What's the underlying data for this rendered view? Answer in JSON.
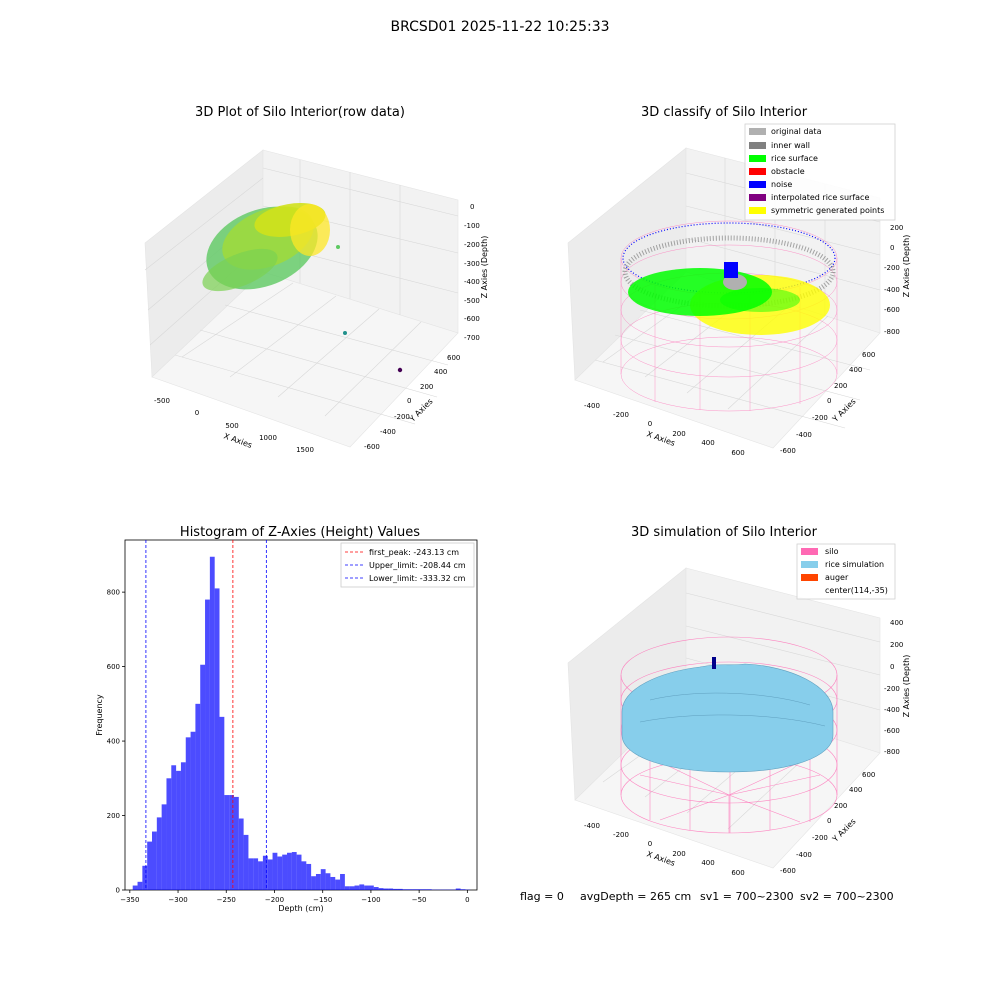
{
  "suptitle": "BRCSD01 2025-11-22 10:25:33",
  "footer": {
    "flag": "flag = 0",
    "avgDepth": "avgDepth = 265 cm",
    "sv1": "sv1 = 700~2300",
    "sv2": "sv2 = 700~2300"
  },
  "raw3d": {
    "title": "3D Plot of Silo Interior(row data)",
    "xlabel": "X Axies",
    "ylabel": "Y Axies",
    "zlabel": "Z Axies (Depth)",
    "xticks": [
      "-500",
      "0",
      "500",
      "1000",
      "1500"
    ],
    "yticks": [
      "-600",
      "-400",
      "-200",
      "0",
      "200",
      "400",
      "600"
    ],
    "zticks": [
      "0",
      "-100",
      "-200",
      "-300",
      "-400",
      "-500",
      "-600",
      "-700"
    ],
    "colors": {
      "low": "#5ec962",
      "high": "#fde725",
      "outlier1": "#21918c",
      "outlier2": "#440154"
    }
  },
  "classify3d": {
    "title": "3D classify of Silo Interior",
    "xlabel": "X Axies",
    "ylabel": "Y Axies",
    "zlabel": "Z Axies (Depth)",
    "xticks": [
      "-400",
      "-200",
      "0",
      "200",
      "400",
      "600"
    ],
    "yticks": [
      "-600",
      "-400",
      "-200",
      "0",
      "200",
      "400",
      "600"
    ],
    "zticks": [
      "200",
      "0",
      "-200",
      "-400",
      "-600",
      "-800"
    ],
    "legend": [
      {
        "label": "original data",
        "color": "#b0b0b0"
      },
      {
        "label": "inner wall",
        "color": "#808080"
      },
      {
        "label": "rice surface",
        "color": "#00ff00"
      },
      {
        "label": "obstacle",
        "color": "#ff0000"
      },
      {
        "label": "noise",
        "color": "#0000ff"
      },
      {
        "label": "interpolated rice surface",
        "color": "#800080"
      },
      {
        "label": "symmetric generated points",
        "color": "#ffff00"
      }
    ]
  },
  "simulation3d": {
    "title": "3D simulation of Silo Interior",
    "xlabel": "X Axies",
    "ylabel": "Y Axies",
    "zlabel": "Z Axies (Depth)",
    "xticks": [
      "-400",
      "-200",
      "0",
      "200",
      "400",
      "600"
    ],
    "yticks": [
      "-600",
      "-400",
      "-200",
      "0",
      "200",
      "400",
      "600"
    ],
    "zticks": [
      "400",
      "200",
      "0",
      "-200",
      "-400",
      "-600",
      "-800"
    ],
    "legend": [
      {
        "label": "silo",
        "color": "#ff69b4"
      },
      {
        "label": "rice simulation",
        "color": "#87ceeb"
      },
      {
        "label": "auger",
        "color": "#ff4500"
      },
      {
        "label": "center(114,-35)",
        "color": ""
      }
    ]
  },
  "chart_data": [
    {
      "type": "bar",
      "title": "Histogram of Z-Axies (Height) Values",
      "xlabel": "Depth (cm)",
      "ylabel": "Frequency",
      "xlim": [
        -355,
        10
      ],
      "ylim": [
        0,
        940
      ],
      "xticks": [
        -350,
        -300,
        -250,
        -200,
        -150,
        -100,
        -50,
        0
      ],
      "yticks": [
        0,
        200,
        400,
        600,
        800
      ],
      "bar_color": "#0000ff",
      "bin_edges": [
        -347,
        -342,
        -337,
        -332,
        -327,
        -322,
        -317,
        -312,
        -307,
        -302,
        -297,
        -292,
        -287,
        -282,
        -277,
        -272,
        -267,
        -262,
        -257,
        -252,
        -247,
        -242,
        -237,
        -232,
        -227,
        -222,
        -217,
        -212,
        -207,
        -202,
        -197,
        -192,
        -187,
        -182,
        -177,
        -172,
        -167,
        -162,
        -157,
        -152,
        -147,
        -142,
        -137,
        -132,
        -127,
        -122,
        -117,
        -112,
        -107,
        -102,
        -97,
        -92,
        -87,
        -82,
        -77,
        -72,
        -67,
        -62,
        -57,
        -52,
        -47,
        -42,
        -37,
        -32,
        -27,
        -22,
        -17,
        -12,
        -7,
        -2,
        3
      ],
      "values": [
        12,
        22,
        65,
        130,
        157,
        195,
        230,
        300,
        335,
        320,
        343,
        410,
        425,
        500,
        605,
        780,
        895,
        810,
        465,
        255,
        255,
        250,
        192,
        148,
        85,
        85,
        77,
        92,
        82,
        100,
        90,
        95,
        100,
        102,
        95,
        77,
        70,
        37,
        43,
        56,
        45,
        35,
        28,
        43,
        10,
        10,
        12,
        15,
        12,
        12,
        8,
        5,
        4,
        4,
        3,
        3,
        2,
        2,
        2,
        2,
        2,
        2,
        1,
        1,
        1,
        1,
        1,
        4,
        2,
        1
      ],
      "lines": [
        {
          "label": "first_peak: -243.13 cm",
          "x": -243.13,
          "color": "#ff0000"
        },
        {
          "label": "Upper_limit: -208.44 cm",
          "x": -208.44,
          "color": "#0000ff"
        },
        {
          "label": "Lower_limit: -333.32 cm",
          "x": -333.32,
          "color": "#0000ff"
        }
      ]
    }
  ]
}
